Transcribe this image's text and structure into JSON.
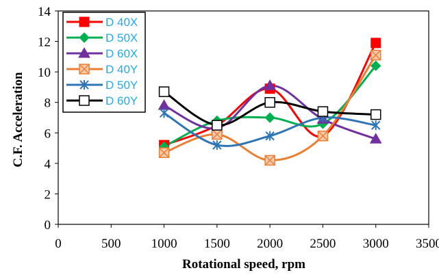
{
  "chart_data": {
    "type": "line",
    "xlabel": "Rotational speed, rpm",
    "ylabel": "C.F.  Acceleration",
    "xlim": [
      0,
      3500
    ],
    "ylim": [
      0,
      14
    ],
    "xticks": [
      0,
      500,
      1000,
      1500,
      2000,
      2500,
      3000,
      3500
    ],
    "yticks": [
      0,
      2,
      4,
      6,
      8,
      10,
      12,
      14
    ],
    "grid": false,
    "legend_position": "top-left",
    "x": [
      1000,
      1500,
      2000,
      2500,
      3000
    ],
    "series": [
      {
        "name": "D 40X",
        "values": [
          5.2,
          6.5,
          8.9,
          5.8,
          11.9
        ],
        "color": "#ff0000",
        "marker": "square"
      },
      {
        "name": "D 50X",
        "values": [
          5.1,
          6.8,
          7.0,
          6.6,
          10.4
        ],
        "color": "#00b050",
        "marker": "diamond"
      },
      {
        "name": "D 60X",
        "values": [
          7.8,
          6.3,
          9.1,
          6.9,
          5.6
        ],
        "color": "#7030a0",
        "marker": "triangle"
      },
      {
        "name": "D 40Y",
        "values": [
          4.7,
          5.9,
          4.2,
          5.8,
          11.1
        ],
        "color": "#ed7d31",
        "marker": "xsquare"
      },
      {
        "name": "D 50Y",
        "values": [
          7.3,
          5.2,
          5.8,
          7.0,
          6.5
        ],
        "color": "#2e75b6",
        "marker": "star"
      },
      {
        "name": "D 60Y",
        "values": [
          8.7,
          6.5,
          8.0,
          7.4,
          7.2
        ],
        "color": "#000000",
        "marker": "opensquare"
      }
    ]
  }
}
